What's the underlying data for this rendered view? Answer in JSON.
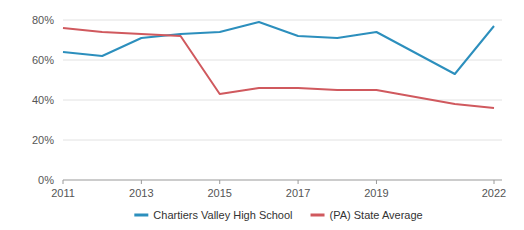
{
  "chart_data": {
    "type": "line",
    "x": [
      2011,
      2012,
      2013,
      2014,
      2015,
      2016,
      2017,
      2018,
      2019,
      2021,
      2022
    ],
    "series": [
      {
        "name": "Chartiers Valley High School",
        "color": "#2c8fbd",
        "values": [
          64,
          62,
          71,
          73,
          74,
          79,
          72,
          71,
          74,
          53,
          77
        ]
      },
      {
        "name": "(PA) State Average",
        "color": "#d0595e",
        "values": [
          76,
          74,
          73,
          72,
          43,
          46,
          46,
          45,
          45,
          38,
          36
        ]
      }
    ],
    "xlim": [
      2011,
      2022
    ],
    "xticks": [
      2011,
      2013,
      2015,
      2017,
      2019,
      2022
    ],
    "ylim": [
      0,
      80
    ],
    "yticks": [
      {
        "value": 0,
        "label": "0%"
      },
      {
        "value": 20,
        "label": "20%"
      },
      {
        "value": 40,
        "label": "40%"
      },
      {
        "value": 60,
        "label": "60%"
      },
      {
        "value": 80,
        "label": "80%"
      }
    ],
    "grid": true,
    "legend": "bottom"
  }
}
